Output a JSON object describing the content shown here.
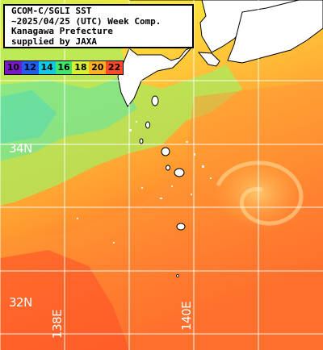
{
  "title": {
    "line1": "GCOM-C/SGLI SST",
    "line2": "~2025/04/25 (UTC) Week Comp.",
    "line3": "Kanagawa Prefecture",
    "line4": "supplied by JAXA"
  },
  "legend": {
    "labels": [
      "10",
      "12",
      "14",
      "16",
      "18",
      "20",
      "22"
    ],
    "colors": [
      "#7a18c8",
      "#1e5cf2",
      "#12c8e6",
      "#3ee66a",
      "#d8f032",
      "#ffb020",
      "#ff4a2a"
    ]
  },
  "grid": {
    "lat_labels": [
      "34N",
      "32N"
    ],
    "lon_labels": [
      "138E",
      "140E"
    ],
    "line_color": "#ffffff"
  },
  "colors": {
    "land": "#ffffff",
    "coast": "#000000",
    "sea_cold": "#9ef060",
    "sea_mid": "#ffd040",
    "sea_warm": "#ff7a2e",
    "sea_hot": "#ff4a24"
  }
}
